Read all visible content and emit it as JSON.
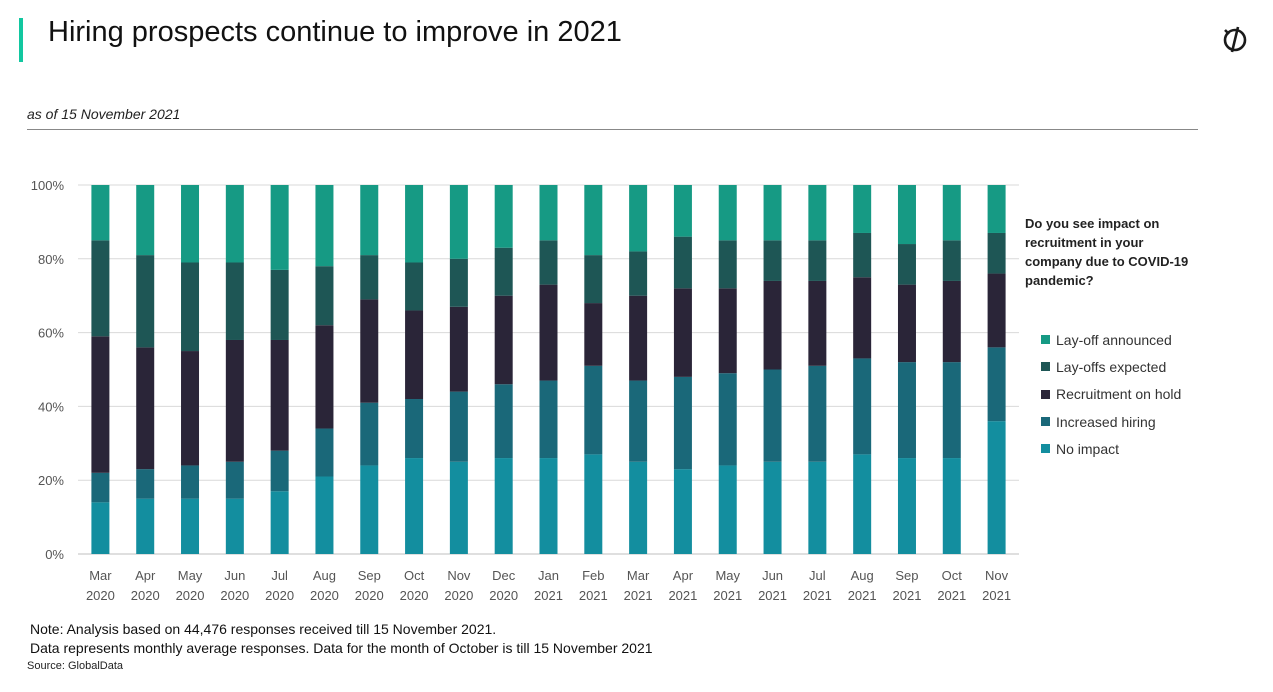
{
  "header": {
    "title": "Hiring prospects continue to improve in 2021",
    "subtitle": "as of 15 November 2021"
  },
  "legend": {
    "title": "Do you see impact on recruitment in your company due to COVID-19 pandemic?"
  },
  "notes": {
    "line1": "Note: Analysis based on 44,476 responses received till 15 November 2021.",
    "line2": "Data represents monthly average responses. Data for the month of October is till 15 November 2021",
    "source": "Source: GlobalData"
  },
  "colors": {
    "accent": "#12c7a0",
    "grid": "#d9d9d9",
    "axis_text": "#555555"
  },
  "chart_data": {
    "type": "bar",
    "stacked": true,
    "percent": true,
    "ylim": [
      0,
      100
    ],
    "yticks": [
      "0%",
      "20%",
      "40%",
      "60%",
      "80%",
      "100%"
    ],
    "legend_position": "right",
    "categories": [
      [
        "Mar",
        "2020"
      ],
      [
        "Apr",
        "2020"
      ],
      [
        "May",
        "2020"
      ],
      [
        "Jun",
        "2020"
      ],
      [
        "Jul",
        "2020"
      ],
      [
        "Aug",
        "2020"
      ],
      [
        "Sep",
        "2020"
      ],
      [
        "Oct",
        "2020"
      ],
      [
        "Nov",
        "2020"
      ],
      [
        "Dec",
        "2020"
      ],
      [
        "Jan",
        "2021"
      ],
      [
        "Feb",
        "2021"
      ],
      [
        "Mar",
        "2021"
      ],
      [
        "Apr",
        "2021"
      ],
      [
        "May",
        "2021"
      ],
      [
        "Jun",
        "2021"
      ],
      [
        "Jul",
        "2021"
      ],
      [
        "Aug",
        "2021"
      ],
      [
        "Sep",
        "2021"
      ],
      [
        "Oct",
        "2021"
      ],
      [
        "Nov",
        "2021"
      ]
    ],
    "series": [
      {
        "name": "No impact",
        "color": "#138e9f",
        "values": [
          14,
          15,
          15,
          15,
          17,
          21,
          24,
          26,
          25,
          26,
          26,
          27,
          25,
          23,
          24,
          25,
          25,
          27,
          26,
          26,
          36
        ]
      },
      {
        "name": "Increased hiring",
        "color": "#1a6879",
        "values": [
          8,
          8,
          9,
          10,
          11,
          13,
          17,
          16,
          19,
          20,
          21,
          24,
          22,
          25,
          25,
          25,
          26,
          26,
          26,
          26,
          20
        ]
      },
      {
        "name": "Recruitment on hold",
        "color": "#2a2538",
        "values": [
          37,
          33,
          31,
          33,
          30,
          28,
          28,
          24,
          23,
          24,
          26,
          17,
          23,
          24,
          23,
          24,
          23,
          22,
          21,
          22,
          20
        ]
      },
      {
        "name": "Lay-offs expected",
        "color": "#1e5655",
        "values": [
          26,
          25,
          24,
          21,
          19,
          16,
          12,
          13,
          13,
          13,
          12,
          13,
          12,
          14,
          13,
          11,
          11,
          12,
          11,
          11,
          11
        ]
      },
      {
        "name": "Lay-off announced",
        "color": "#169a84",
        "values": [
          15,
          19,
          21,
          21,
          23,
          22,
          19,
          21,
          20,
          17,
          15,
          19,
          18,
          14,
          15,
          15,
          15,
          13,
          16,
          15,
          13
        ]
      }
    ],
    "legend_order": [
      "Lay-off announced",
      "Lay-offs expected",
      "Recruitment on hold",
      "Increased hiring",
      "No impact"
    ]
  }
}
